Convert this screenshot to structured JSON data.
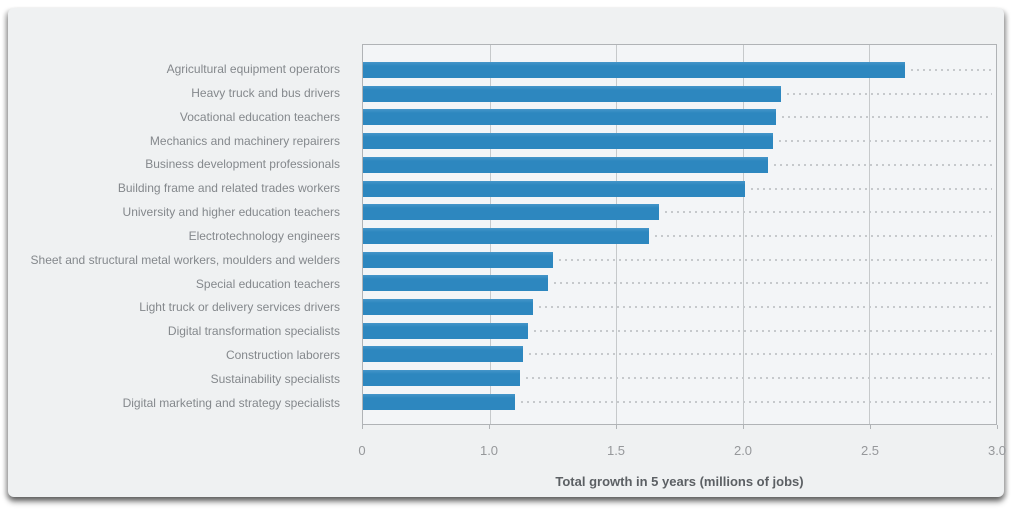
{
  "chart_data": {
    "type": "bar",
    "orientation": "horizontal",
    "title": "",
    "xlabel": "Total growth in 5 years (millions of jobs)",
    "ylabel": "",
    "grid": true,
    "legend": false,
    "categories": [
      "Agricultural equipment operators",
      "Heavy truck and bus drivers",
      "Vocational education teachers",
      "Mechanics and machinery repairers",
      "Business development professionals",
      "Building frame and related trades workers",
      "University and higher education teachers",
      "Electrotechnology engineers",
      "Sheet and structural metal workers, moulders and welders",
      "Special education teachers",
      "Light truck or delivery services drivers",
      "Digital transformation specialists",
      "Construction laborers",
      "Sustainability specialists",
      "Digital marketing and strategy specialists"
    ],
    "values": [
      2.64,
      2.15,
      2.13,
      2.12,
      2.1,
      2.01,
      1.67,
      1.63,
      1.25,
      1.23,
      1.17,
      1.15,
      1.13,
      1.12,
      1.1
    ],
    "axis_ticks": [
      {
        "label": "0",
        "value": 0.0,
        "pct": 0
      },
      {
        "label": "1.0",
        "value": 1.0,
        "pct": 20
      },
      {
        "label": "1.5",
        "value": 1.5,
        "pct": 40
      },
      {
        "label": "2.0",
        "value": 2.0,
        "pct": 60
      },
      {
        "label": "2.5",
        "value": 2.5,
        "pct": 80
      },
      {
        "label": "3.0",
        "value": 3.0,
        "pct": 100
      }
    ]
  },
  "colors": {
    "bar": "#2d87bf",
    "bar_top": "#4596c9",
    "card_bg": "#eff1f2",
    "plot_bg": "#f3f5f7",
    "grid": "#c6c9cb",
    "border": "#b0b3b6",
    "label": "#84888c",
    "tick": "#96989b",
    "title": "#5c6064",
    "leader": "#c6c9cc"
  }
}
